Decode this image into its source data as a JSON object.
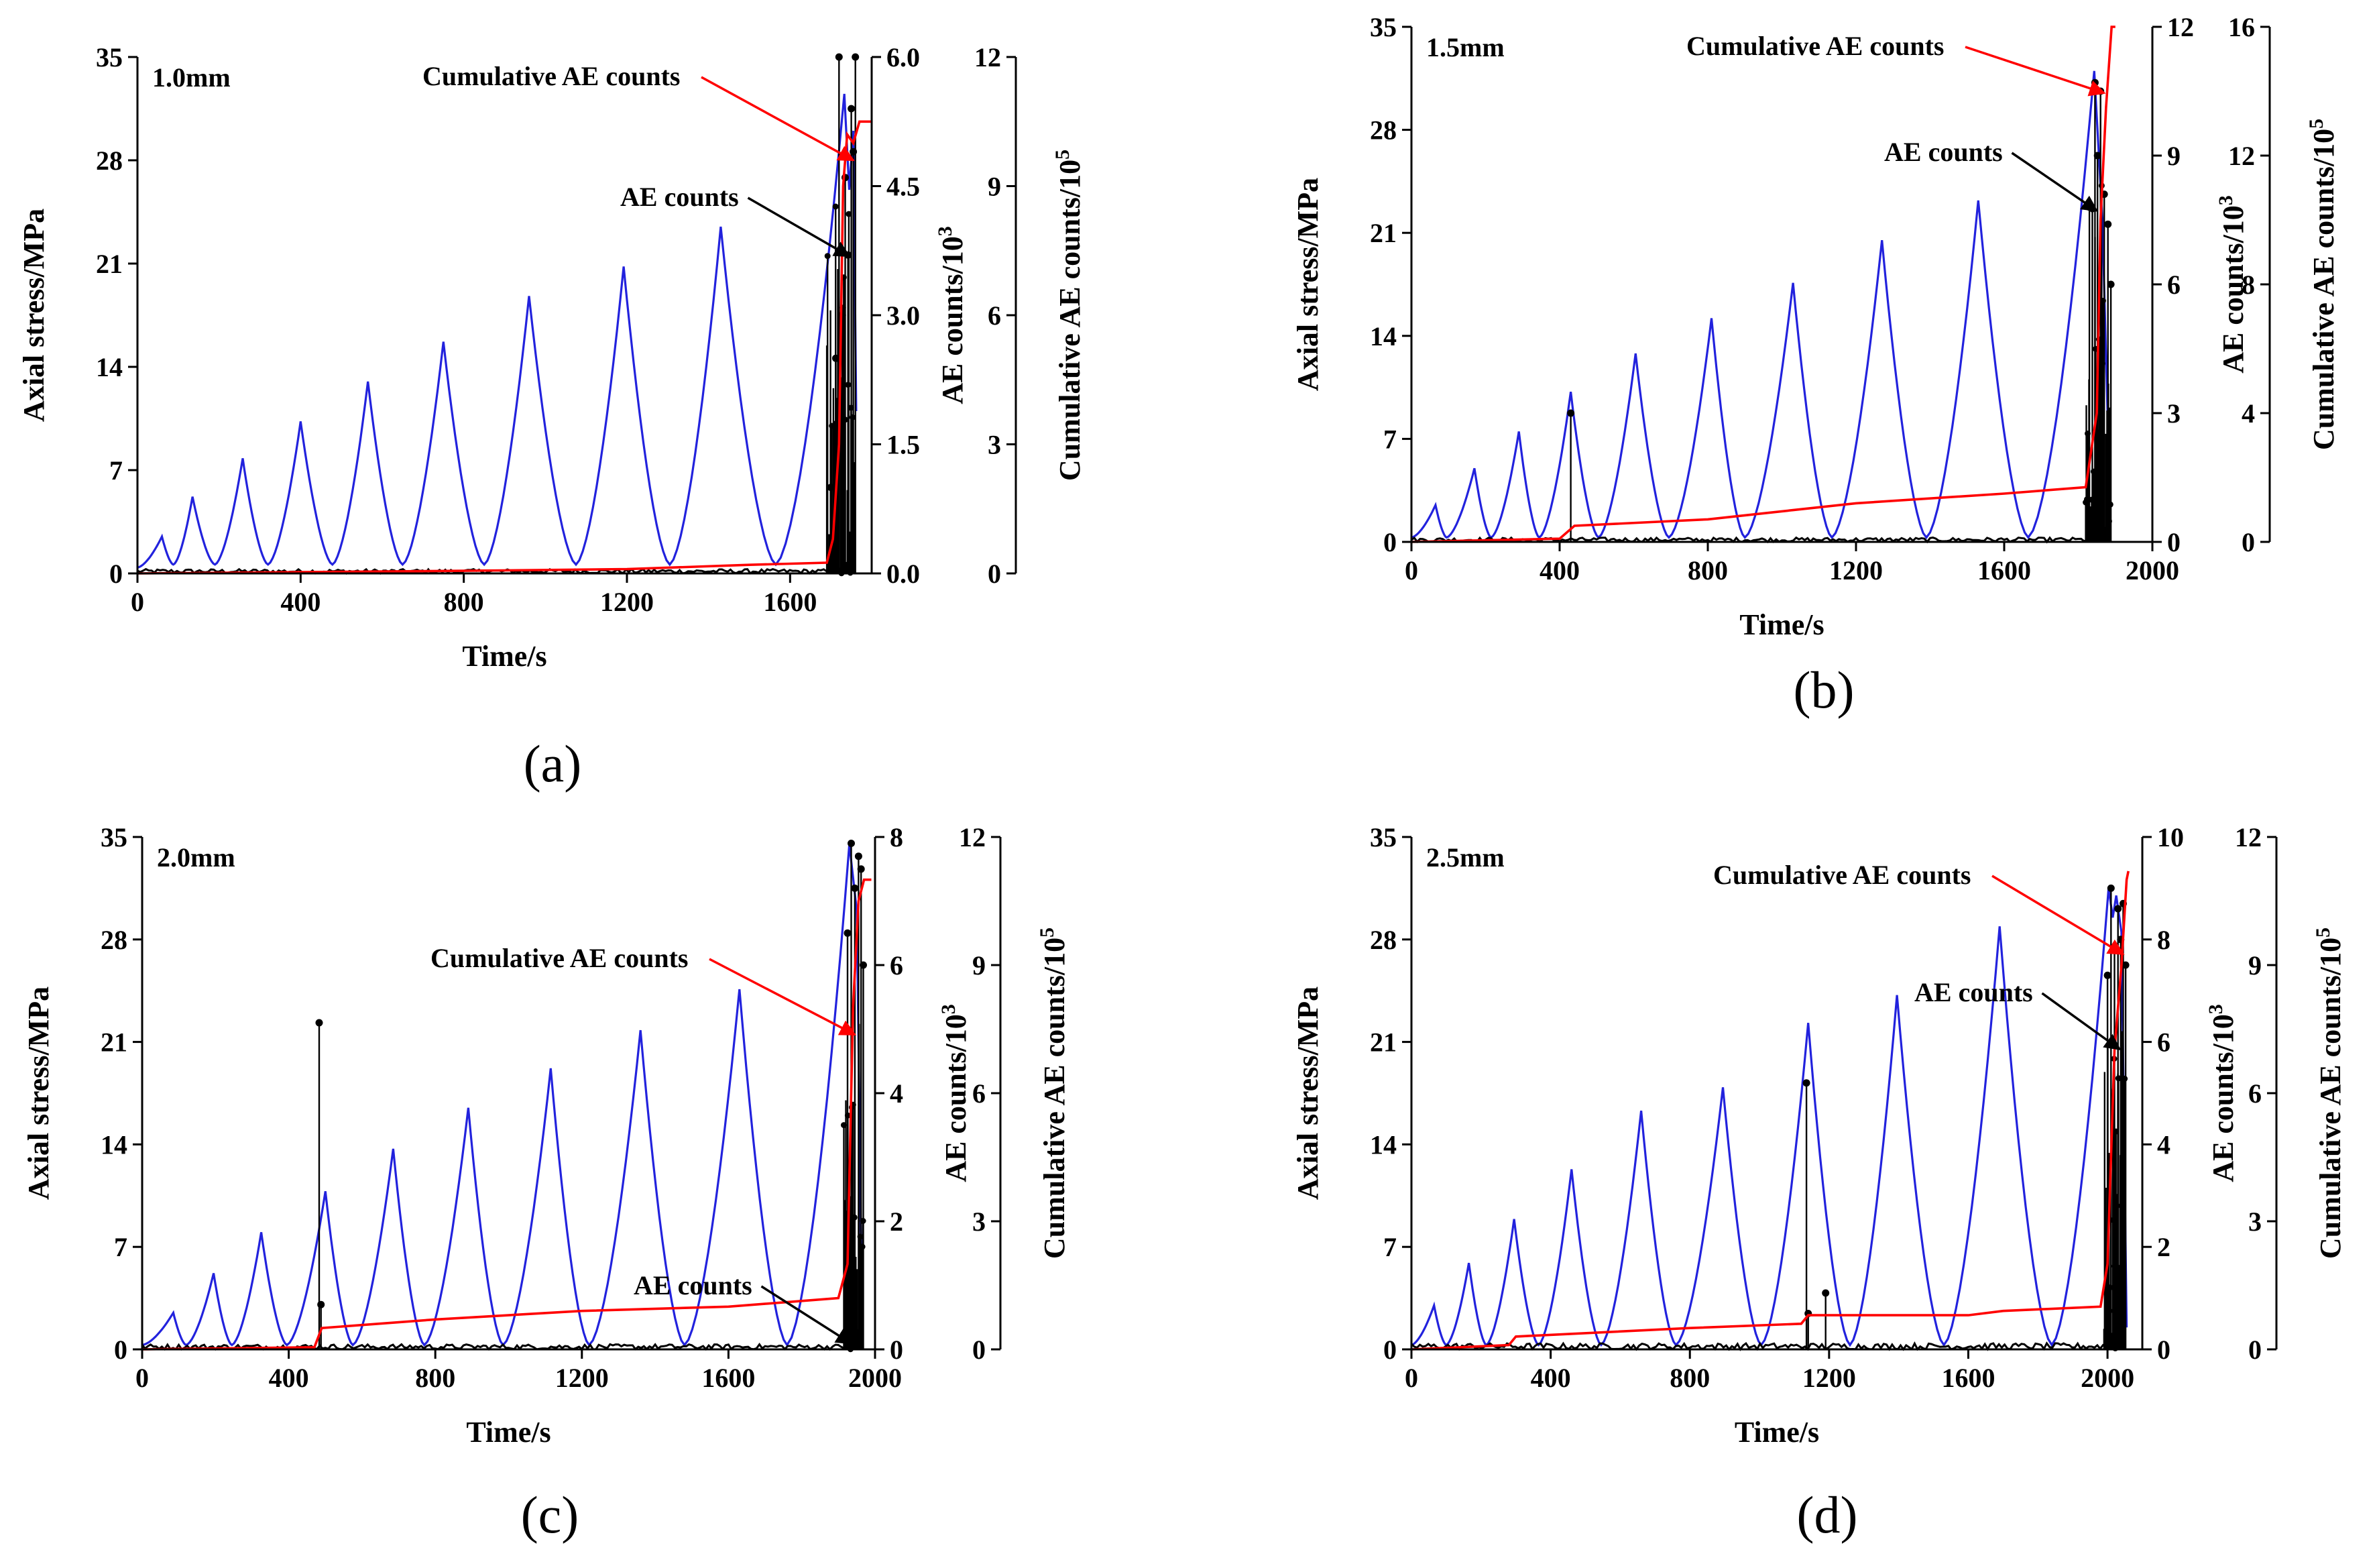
{
  "chart_data": [
    {
      "type": "line",
      "panel_label": "(a)",
      "title": "1.0mm",
      "xlabel": "Time/s",
      "ylabel": "Axial stress/MPa",
      "y2label_main": "AE counts/10",
      "y2label_sup": "3",
      "y3label_main": "Cumulative AE counts/10",
      "y3label_sup": "5",
      "xlim": [
        0,
        1800
      ],
      "xticks": [
        0,
        400,
        800,
        1200,
        1600
      ],
      "ylim": [
        0,
        35
      ],
      "yticks": [
        "0",
        "7",
        "14",
        "21",
        "28",
        "35"
      ],
      "y2lim": [
        0,
        6
      ],
      "y2ticks": [
        "0.0",
        "1.5",
        "3.0",
        "4.5",
        "6.0"
      ],
      "y3lim": [
        0,
        12
      ],
      "y3ticks": [
        "0",
        "3",
        "6",
        "9",
        "12"
      ],
      "annotations": [
        {
          "text": "Cumulative AE counts",
          "series": "cumulative",
          "x": 1755,
          "y": 28
        },
        {
          "text": "AE counts",
          "series": "ae",
          "x": 1745,
          "y": 21.5
        }
      ],
      "series": [
        {
          "name": "Axial stress",
          "color": "#2222dd",
          "peaks": [
            [
              60,
              2.5
            ],
            [
              135,
              5.2
            ],
            [
              258,
              7.8
            ],
            [
              400,
              10.3
            ],
            [
              565,
              13.0
            ],
            [
              750,
              15.7
            ],
            [
              960,
              18.8
            ],
            [
              1192,
              20.8
            ],
            [
              1430,
              23.5
            ],
            [
              1733,
              32.5
            ]
          ],
          "valleys": [
            [
              0,
              0.4
            ],
            [
              88,
              0.6
            ],
            [
              190,
              0.6
            ],
            [
              320,
              0.6
            ],
            [
              478,
              0.6
            ],
            [
              650,
              0.6
            ],
            [
              850,
              0.6
            ],
            [
              1075,
              0.6
            ],
            [
              1305,
              0.6
            ],
            [
              1565,
              0.6
            ]
          ],
          "tail": [
            [
              1745,
              26
            ],
            [
              1755,
              30
            ],
            [
              1762,
              11
            ]
          ]
        },
        {
          "name": "AE counts",
          "color": "#000000",
          "baseline_max": 0.05,
          "spikes": [
            [
              1700,
              1.0
            ],
            [
              1712,
              2.5
            ],
            [
              1720,
              6.0
            ],
            [
              1728,
              3.0
            ],
            [
              1735,
              4.6
            ],
            [
              1742,
              3.7
            ],
            [
              1750,
              5.4
            ],
            [
              1755,
              4.9
            ],
            [
              1760,
              6.0
            ]
          ]
        },
        {
          "name": "Cumulative AE counts",
          "color": "#ff0000",
          "points": [
            [
              0,
              0
            ],
            [
              400,
              0.03
            ],
            [
              800,
              0.06
            ],
            [
              1200,
              0.1
            ],
            [
              1500,
              0.2
            ],
            [
              1690,
              0.25
            ],
            [
              1705,
              0.8
            ],
            [
              1720,
              3.0
            ],
            [
              1730,
              9.0
            ],
            [
              1740,
              10.2
            ],
            [
              1755,
              10.0
            ],
            [
              1770,
              10.5
            ],
            [
              1800,
              10.5
            ]
          ]
        }
      ]
    },
    {
      "type": "line",
      "panel_label": "(b)",
      "title": "1.5mm",
      "xlabel": "Time/s",
      "ylabel": "Axial stress/MPa",
      "y2label_main": "AE counts/10",
      "y2label_sup": "3",
      "y3label_main": "Cumulative AE counts/10",
      "y3label_sup": "5",
      "xlim": [
        0,
        2000
      ],
      "xticks": [
        0,
        400,
        800,
        1200,
        1600,
        2000
      ],
      "ylim": [
        0,
        35
      ],
      "yticks": [
        "0",
        "7",
        "14",
        "21",
        "28",
        "35"
      ],
      "y2lim": [
        0,
        12
      ],
      "y2ticks": [
        "0",
        "3",
        "6",
        "9",
        "12"
      ],
      "y3lim": [
        0,
        16
      ],
      "y3ticks": [
        "0",
        "4",
        "8",
        "12",
        "16"
      ],
      "annotations": [
        {
          "text": "Cumulative AE counts",
          "series": "cumulative",
          "x": 1870,
          "y": 30.5
        },
        {
          "text": "AE counts",
          "series": "ae",
          "x": 1850,
          "y": 22.5
        }
      ],
      "series": [
        {
          "name": "Axial stress",
          "color": "#2222dd",
          "peaks": [
            [
              65,
              2.5
            ],
            [
              170,
              5.0
            ],
            [
              290,
              7.5
            ],
            [
              430,
              10.2
            ],
            [
              605,
              12.8
            ],
            [
              810,
              15.2
            ],
            [
              1030,
              17.6
            ],
            [
              1270,
              20.5
            ],
            [
              1530,
              23.2
            ],
            [
              1843,
              32.0
            ]
          ],
          "valleys": [
            [
              0,
              0.3
            ],
            [
              95,
              0.3
            ],
            [
              215,
              0.3
            ],
            [
              345,
              0.3
            ],
            [
              505,
              0.3
            ],
            [
              695,
              0.3
            ],
            [
              900,
              0.3
            ],
            [
              1135,
              0.3
            ],
            [
              1390,
              0.3
            ],
            [
              1665,
              0.3
            ]
          ],
          "tail": [
            [
              1865,
              22
            ],
            [
              1885,
              3
            ]
          ]
        },
        {
          "name": "AE counts",
          "color": "#000000",
          "baseline_max": 0.1,
          "spikes": [
            [
              430,
              3.0
            ],
            [
              1830,
              7.8
            ],
            [
              1845,
              10.7
            ],
            [
              1852,
              9.0
            ],
            [
              1860,
              10.5
            ],
            [
              1870,
              8.1
            ],
            [
              1880,
              7.4
            ],
            [
              1888,
              6.0
            ]
          ]
        },
        {
          "name": "Cumulative AE counts",
          "color": "#ff0000",
          "points": [
            [
              0,
              0
            ],
            [
              400,
              0.1
            ],
            [
              440,
              0.5
            ],
            [
              800,
              0.7
            ],
            [
              1200,
              1.2
            ],
            [
              1600,
              1.5
            ],
            [
              1820,
              1.7
            ],
            [
              1850,
              4.0
            ],
            [
              1860,
              10.0
            ],
            [
              1875,
              13.5
            ],
            [
              1890,
              16.0
            ],
            [
              1900,
              16.0
            ]
          ]
        }
      ]
    },
    {
      "type": "line",
      "panel_label": "(c)",
      "title": "2.0mm",
      "xlabel": "Time/s",
      "ylabel": "Axial stress/MPa",
      "y2label_main": "AE counts/10",
      "y2label_sup": "3",
      "y3label_main": "Cumulative AE counts/10",
      "y3label_sup": "5",
      "xlim": [
        0,
        2000
      ],
      "xticks": [
        0,
        400,
        800,
        1200,
        1600,
        2000
      ],
      "ylim": [
        0,
        35
      ],
      "yticks": [
        "0",
        "7",
        "14",
        "21",
        "28",
        "35"
      ],
      "y2lim": [
        0,
        8
      ],
      "y2ticks": [
        "0",
        "2",
        "4",
        "6",
        "8"
      ],
      "y3lim": [
        0,
        12
      ],
      "y3ticks": [
        "0",
        "3",
        "6",
        "9",
        "12"
      ],
      "annotations": [
        {
          "text": "Cumulative AE counts",
          "series": "cumulative",
          "x": 1945,
          "y": 21.5
        },
        {
          "text": "AE counts",
          "series": "ae",
          "x": 1935,
          "y": 0.4
        }
      ],
      "series": [
        {
          "name": "Axial stress",
          "color": "#2222dd",
          "peaks": [
            [
              85,
              2.5
            ],
            [
              195,
              5.2
            ],
            [
              325,
              8.0
            ],
            [
              500,
              10.8
            ],
            [
              685,
              13.7
            ],
            [
              890,
              16.5
            ],
            [
              1115,
              19.2
            ],
            [
              1360,
              21.8
            ],
            [
              1630,
              24.6
            ],
            [
              1930,
              34.5
            ]
          ],
          "valleys": [
            [
              0,
              0.3
            ],
            [
              120,
              0.3
            ],
            [
              245,
              0.3
            ],
            [
              395,
              0.3
            ],
            [
              575,
              0.3
            ],
            [
              770,
              0.3
            ],
            [
              985,
              0.3
            ],
            [
              1220,
              0.3
            ],
            [
              1480,
              0.3
            ],
            [
              1760,
              0.3
            ]
          ],
          "tail": [
            [
              1950,
              30
            ],
            [
              1965,
              2
            ]
          ]
        },
        {
          "name": "AE counts",
          "color": "#000000",
          "baseline_max": 0.08,
          "spikes": [
            [
              483,
              5.1
            ],
            [
              488,
              0.7
            ],
            [
              1925,
              6.5
            ],
            [
              1935,
              7.9
            ],
            [
              1945,
              7.2
            ],
            [
              1955,
              7.7
            ],
            [
              1962,
              7.5
            ],
            [
              1968,
              6.0
            ]
          ]
        },
        {
          "name": "Cumulative AE counts",
          "color": "#ff0000",
          "points": [
            [
              0,
              0
            ],
            [
              470,
              0.05
            ],
            [
              490,
              0.5
            ],
            [
              800,
              0.7
            ],
            [
              1200,
              0.9
            ],
            [
              1600,
              1.0
            ],
            [
              1900,
              1.2
            ],
            [
              1925,
              2.0
            ],
            [
              1940,
              8.0
            ],
            [
              1955,
              10.5
            ],
            [
              1970,
              11.0
            ],
            [
              1990,
              11.0
            ]
          ]
        }
      ]
    },
    {
      "type": "line",
      "panel_label": "(d)",
      "title": "2.5mm",
      "xlabel": "Time/s",
      "ylabel": "Axial stress/MPa",
      "y2label_main": "AE counts/10",
      "y2label_sup": "3",
      "y3label_main": "Cumulative AE counts/10",
      "y3label_sup": "5",
      "xlim": [
        0,
        2100
      ],
      "xticks": [
        0,
        400,
        800,
        1200,
        1600,
        2000
      ],
      "ylim": [
        0,
        35
      ],
      "yticks": [
        "0",
        "7",
        "14",
        "21",
        "28",
        "35"
      ],
      "y2lim": [
        0,
        10
      ],
      "y2ticks": [
        "0",
        "2",
        "4",
        "6",
        "8",
        "10"
      ],
      "y3lim": [
        0,
        12
      ],
      "y3ticks": [
        "0",
        "3",
        "6",
        "9",
        "12"
      ],
      "annotations": [
        {
          "text": "Cumulative AE counts",
          "series": "cumulative",
          "x": 2045,
          "y": 27.0
        },
        {
          "text": "AE counts",
          "series": "ae",
          "x": 2035,
          "y": 20.5
        }
      ],
      "series": [
        {
          "name": "Axial stress",
          "color": "#2222dd",
          "peaks": [
            [
              65,
              3.0
            ],
            [
              165,
              5.9
            ],
            [
              295,
              8.9
            ],
            [
              460,
              12.3
            ],
            [
              660,
              16.3
            ],
            [
              895,
              17.9
            ],
            [
              1140,
              22.3
            ],
            [
              1395,
              24.2
            ],
            [
              1690,
              28.9
            ],
            [
              2003,
              31.5
            ]
          ],
          "valleys": [
            [
              0,
              0.3
            ],
            [
              100,
              0.3
            ],
            [
              215,
              0.3
            ],
            [
              365,
              0.3
            ],
            [
              545,
              0.3
            ],
            [
              760,
              0.3
            ],
            [
              1005,
              0.3
            ],
            [
              1260,
              0.3
            ],
            [
              1530,
              0.3
            ],
            [
              1840,
              0.3
            ]
          ],
          "tail": [
            [
              2015,
              29.5
            ],
            [
              2025,
              31.0
            ],
            [
              2040,
              28.5
            ],
            [
              2055,
              1.5
            ]
          ]
        },
        {
          "name": "AE counts",
          "color": "#000000",
          "baseline_max": 0.12,
          "spikes": [
            [
              1135,
              5.2
            ],
            [
              1140,
              0.7
            ],
            [
              1190,
              1.1
            ],
            [
              2000,
              7.3
            ],
            [
              2010,
              9.0
            ],
            [
              2020,
              7.8
            ],
            [
              2030,
              8.6
            ],
            [
              2038,
              8.0
            ],
            [
              2045,
              8.7
            ],
            [
              2052,
              7.5
            ]
          ]
        },
        {
          "name": "Cumulative AE counts",
          "color": "#ff0000",
          "points": [
            [
              0,
              0
            ],
            [
              280,
              0.1
            ],
            [
              300,
              0.3
            ],
            [
              800,
              0.5
            ],
            [
              1120,
              0.6
            ],
            [
              1140,
              0.8
            ],
            [
              1600,
              0.8
            ],
            [
              1700,
              0.9
            ],
            [
              1980,
              1.0
            ],
            [
              2000,
              2.0
            ],
            [
              2020,
              7.0
            ],
            [
              2040,
              9.0
            ],
            [
              2055,
              11.0
            ],
            [
              2060,
              11.2
            ]
          ]
        }
      ]
    }
  ]
}
